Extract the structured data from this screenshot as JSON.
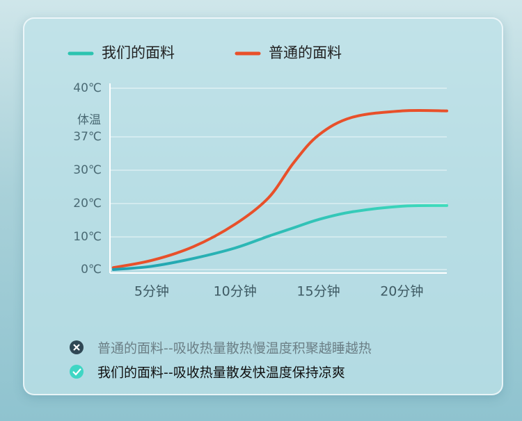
{
  "chart_data": {
    "type": "line",
    "annotation": "体温",
    "x": [
      2.7,
      5,
      7.5,
      10,
      12,
      13.5,
      15,
      17,
      20,
      22.7
    ],
    "xlim": [
      2.5,
      22.7
    ],
    "xticks": [
      {
        "value": 5,
        "label": "5分钟"
      },
      {
        "value": 10,
        "label": "10分钟"
      },
      {
        "value": 15,
        "label": "15分钟"
      },
      {
        "value": 20,
        "label": "20分钟"
      }
    ],
    "ylim": [
      0,
      40
    ],
    "yticks": [
      {
        "value": 0,
        "label": "0℃"
      },
      {
        "value": 10,
        "label": "10℃"
      },
      {
        "value": 20,
        "label": "20℃"
      },
      {
        "value": 30,
        "label": "30℃"
      },
      {
        "value": 37,
        "label": "37℃"
      },
      {
        "value": 40,
        "label": "40℃"
      }
    ],
    "grid": true,
    "legend": "top",
    "series": [
      {
        "name": "我们的面料",
        "color": "#2cc4b0",
        "values": [
          0,
          1,
          3.4,
          6.6,
          10.2,
          12.7,
          15.2,
          17.5,
          19.2,
          19.4
        ]
      },
      {
        "name": "普通的面料",
        "color": "#e8502a",
        "values": [
          0.6,
          2.8,
          7,
          13.8,
          21.7,
          31.5,
          37.1,
          38.2,
          38.6,
          38.6
        ]
      }
    ]
  },
  "notes": [
    "普通的面料--吸收热量散热慢温度积聚越睡越热",
    "我们的面料--吸收热量散发快温度保持凉爽"
  ]
}
